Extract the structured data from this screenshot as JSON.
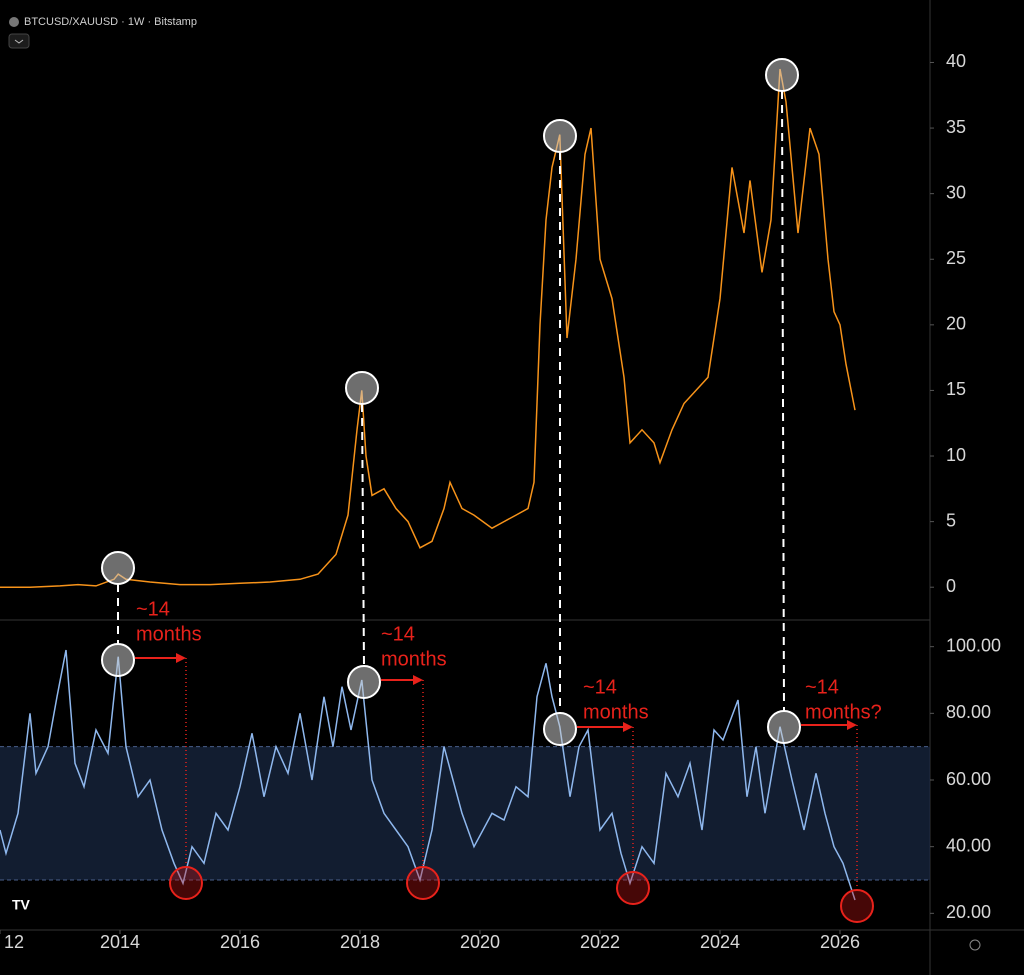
{
  "header": {
    "title": "BTCUSD/XAUUSD · 1W · Bitstamp"
  },
  "annotations": [
    {
      "lines": [
        "~14",
        "months"
      ]
    },
    {
      "lines": [
        "~14",
        "months"
      ]
    },
    {
      "lines": [
        "~14",
        "months"
      ]
    },
    {
      "lines": [
        "~14",
        "months?"
      ]
    }
  ],
  "chart_data": [
    {
      "type": "line",
      "xlim": [
        2012,
        2027.5
      ],
      "ylim": [
        -2.5,
        44
      ],
      "yticks": [
        0,
        5,
        10,
        15,
        20,
        25,
        30,
        35,
        40
      ],
      "x": [
        2012.0,
        2012.5,
        2013.0,
        2013.3,
        2013.6,
        2013.9,
        2013.97,
        2014.1,
        2014.5,
        2015.0,
        2015.5,
        2016.0,
        2016.5,
        2017.0,
        2017.3,
        2017.6,
        2017.8,
        2017.95,
        2018.03,
        2018.1,
        2018.2,
        2018.4,
        2018.6,
        2018.8,
        2019.0,
        2019.2,
        2019.4,
        2019.5,
        2019.7,
        2019.9,
        2020.2,
        2020.4,
        2020.6,
        2020.8,
        2020.9,
        2021.0,
        2021.1,
        2021.2,
        2021.33,
        2021.45,
        2021.6,
        2021.75,
        2021.85,
        2022.0,
        2022.2,
        2022.4,
        2022.5,
        2022.7,
        2022.9,
        2023.0,
        2023.2,
        2023.4,
        2023.6,
        2023.8,
        2023.9,
        2024.0,
        2024.2,
        2024.4,
        2024.5,
        2024.7,
        2024.85,
        2025.0,
        2025.1,
        2025.3,
        2025.5,
        2025.65,
        2025.8,
        2025.9,
        2026.0,
        2026.1,
        2026.25
      ],
      "series": [
        {
          "color": "#f7931a",
          "values": [
            0,
            0,
            0.1,
            0.2,
            0.1,
            0.6,
            1.0,
            0.6,
            0.4,
            0.2,
            0.2,
            0.3,
            0.4,
            0.6,
            1.0,
            2.5,
            5.5,
            12,
            15,
            10,
            7,
            7.5,
            6,
            5,
            3,
            3.5,
            6,
            8,
            6,
            5.5,
            4.5,
            5,
            5.5,
            6,
            8,
            20,
            28,
            32,
            34.5,
            19,
            25,
            33,
            35,
            25,
            22,
            16,
            11,
            12,
            11,
            9.5,
            12,
            14,
            15,
            16,
            19,
            22,
            32,
            27,
            31,
            24,
            28,
            39.5,
            37,
            27,
            35,
            33,
            25,
            21,
            20,
            17,
            13.5
          ]
        }
      ]
    },
    {
      "type": "line",
      "xlim": [
        2012,
        2027.5
      ],
      "ylim": [
        15,
        108
      ],
      "band": [
        30,
        70
      ],
      "band_color": "#1a2a44",
      "yticks": [
        {
          "value": 20,
          "label": "20.00"
        },
        {
          "value": 40,
          "label": "40.00"
        },
        {
          "value": 60,
          "label": "60.00"
        },
        {
          "value": 80,
          "label": "80.00"
        },
        {
          "value": 100,
          "label": "100.00"
        }
      ],
      "xticks": [
        {
          "value": 2012,
          "label": "12"
        },
        2014,
        2016,
        2018,
        2020,
        2022,
        2024,
        2026
      ],
      "x": [
        2012.0,
        2012.1,
        2012.3,
        2012.5,
        2012.6,
        2012.8,
        2012.95,
        2013.1,
        2013.25,
        2013.4,
        2013.6,
        2013.8,
        2013.97,
        2014.1,
        2014.3,
        2014.5,
        2014.7,
        2014.9,
        2015.05,
        2015.2,
        2015.4,
        2015.6,
        2015.8,
        2016.0,
        2016.2,
        2016.4,
        2016.6,
        2016.8,
        2017.0,
        2017.2,
        2017.4,
        2017.55,
        2017.7,
        2017.85,
        2018.03,
        2018.2,
        2018.4,
        2018.6,
        2018.8,
        2019.0,
        2019.2,
        2019.4,
        2019.55,
        2019.7,
        2019.9,
        2020.2,
        2020.4,
        2020.6,
        2020.8,
        2020.95,
        2021.1,
        2021.2,
        2021.33,
        2021.5,
        2021.65,
        2021.8,
        2022.0,
        2022.2,
        2022.35,
        2022.5,
        2022.7,
        2022.9,
        2023.1,
        2023.3,
        2023.5,
        2023.7,
        2023.9,
        2024.05,
        2024.3,
        2024.45,
        2024.6,
        2024.75,
        2025.0,
        2025.2,
        2025.4,
        2025.6,
        2025.75,
        2025.9,
        2026.05,
        2026.25
      ],
      "series": [
        {
          "color": "#8fb8ee",
          "values": [
            45,
            38,
            50,
            80,
            62,
            70,
            85,
            99,
            65,
            58,
            75,
            68,
            97,
            70,
            55,
            60,
            45,
            35,
            29,
            40,
            35,
            50,
            45,
            58,
            74,
            55,
            70,
            62,
            80,
            60,
            85,
            70,
            88,
            75,
            90,
            60,
            50,
            45,
            40,
            30,
            45,
            70,
            60,
            50,
            40,
            50,
            48,
            58,
            55,
            85,
            95,
            85,
            76,
            55,
            70,
            75,
            45,
            50,
            38,
            29,
            40,
            35,
            62,
            55,
            65,
            45,
            75,
            72,
            84,
            55,
            70,
            50,
            76,
            60,
            45,
            62,
            50,
            40,
            35,
            24
          ]
        }
      ]
    }
  ]
}
